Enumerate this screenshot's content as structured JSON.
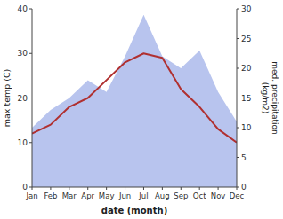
{
  "chart_data": {
    "type": "line",
    "categories": [
      "Jan",
      "Feb",
      "Mar",
      "Apr",
      "May",
      "Jun",
      "Jul",
      "Aug",
      "Sep",
      "Oct",
      "Nov",
      "Dec"
    ],
    "series": [
      {
        "type": "area",
        "color": "#b8c4ee",
        "axis": "y2",
        "values": [
          10,
          13,
          15,
          18,
          16,
          22,
          29,
          22,
          20,
          23,
          16,
          11
        ]
      },
      {
        "type": "line",
        "color": "#b03030",
        "values": [
          12,
          14,
          18,
          20,
          24,
          28,
          30,
          29,
          22,
          18,
          13,
          10
        ]
      }
    ],
    "xlabel": "date (month)",
    "ylabel": "max temp (C)",
    "y2label": "med. precipitation\n(kg/m2)",
    "ylim": [
      0,
      40
    ],
    "yticks": [
      0,
      10,
      20,
      30,
      40
    ],
    "y2lim": [
      0,
      30
    ],
    "y2ticks": [
      0,
      5,
      10,
      15,
      20,
      25,
      30
    ],
    "grid": false
  }
}
